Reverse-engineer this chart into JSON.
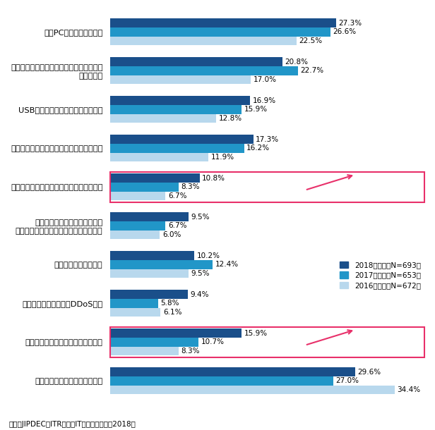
{
  "categories": [
    "社内PCのマルウェア感染",
    "スマートフォン、携帯電話、タブレットの\n紛失・盗難",
    "USBメモリ／記録媒体の紛失・盗難",
    "個人情報の漏洩・逸失（人為ミスによる）",
    "個人情報の漏洩・逸失（内部不正による）",
    "個人情報を巡るトラブルの発生\n（目的外利用、開示請求への対応など）",
    "標的型のサイバー攻撃",
    "公開サーバ等に対するDDoS攻撃",
    "外部からのなりすましメールの受信",
    "インシデントは経験していない"
  ],
  "values_2018": [
    27.3,
    20.8,
    16.9,
    17.3,
    10.8,
    9.5,
    10.2,
    9.4,
    15.9,
    29.6
  ],
  "values_2017": [
    26.6,
    22.7,
    15.9,
    16.2,
    8.3,
    6.7,
    12.4,
    5.8,
    10.7,
    27.0
  ],
  "values_2016": [
    22.5,
    17.0,
    12.8,
    11.9,
    6.7,
    6.0,
    9.5,
    6.1,
    8.3,
    34.4
  ],
  "color_2018": "#1a4f8a",
  "color_2017": "#2196c8",
  "color_2016": "#b8d8ed",
  "legend_labels": [
    "2018年調査（N=693）",
    "2017年調査（N=653）",
    "2016年調査（N=672）"
  ],
  "highlight_rows": [
    4,
    8
  ],
  "highlight_color": "#e8306a",
  "source_text": "出典：JIPDEC／ITR「企業IT利活用動向調査2018」",
  "xlim": [
    0,
    38
  ]
}
